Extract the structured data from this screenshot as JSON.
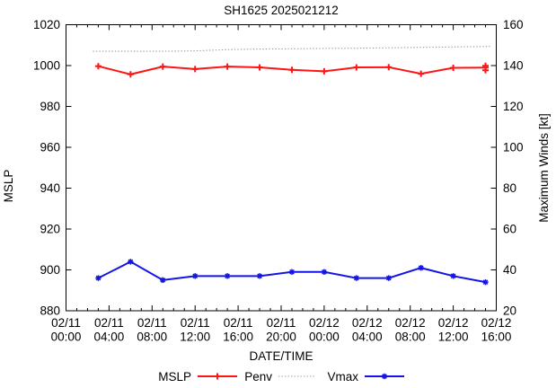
{
  "chart_data": {
    "type": "line",
    "title": "SH1625 2025021212",
    "xlabel": "DATE/TIME",
    "ylabel_left": "MSLP",
    "ylabel_right": "Maximum Winds [kt]",
    "axes": {
      "x_hours_range": [
        0,
        40
      ],
      "x_minor_step_hours": 1,
      "x_major_step_hours": 4,
      "y_left": {
        "min": 880,
        "max": 1020,
        "step": 20,
        "ticks": [
          880,
          900,
          920,
          940,
          960,
          980,
          1000,
          1020
        ]
      },
      "y_right": {
        "min": 20,
        "max": 160,
        "step": 20,
        "ticks": [
          20,
          40,
          60,
          80,
          100,
          120,
          140,
          160
        ]
      },
      "grid": "off"
    },
    "x_tick_labels": [
      [
        "02/11",
        "00:00"
      ],
      [
        "02/11",
        "04:00"
      ],
      [
        "02/11",
        "08:00"
      ],
      [
        "02/11",
        "12:00"
      ],
      [
        "02/11",
        "16:00"
      ],
      [
        "02/11",
        "20:00"
      ],
      [
        "02/12",
        "00:00"
      ],
      [
        "02/12",
        "04:00"
      ],
      [
        "02/12",
        "08:00"
      ],
      [
        "02/12",
        "12:00"
      ],
      [
        "02/12",
        "16:00"
      ]
    ],
    "series": [
      {
        "name": "Penv",
        "axis": "left",
        "color": "#969696",
        "style": "dotted",
        "marker": "none",
        "x_hours": [
          2.5,
          6,
          9,
          12,
          15,
          18,
          21,
          24,
          27,
          30,
          33,
          36,
          39.5
        ],
        "values": [
          1007.0,
          1007.0,
          1007.0,
          1007.2,
          1007.8,
          1008.1,
          1008.2,
          1008.4,
          1008.5,
          1008.7,
          1008.9,
          1009.1,
          1009.4
        ]
      },
      {
        "name": "MSLP",
        "axis": "left",
        "color": "#ff1414",
        "style": "solid",
        "marker": "plus",
        "x_hours": [
          3,
          6,
          9,
          12,
          15,
          18,
          21,
          24,
          27,
          30,
          33,
          36,
          39
        ],
        "values": [
          999.7,
          995.7,
          999.5,
          998.3,
          999.5,
          999.1,
          997.9,
          997.2,
          999.1,
          999.2,
          996.0,
          998.9,
          999.0
        ],
        "end_error_bar": {
          "hour": 39,
          "low": 997.7,
          "high": 999.9
        }
      },
      {
        "name": "Vmax",
        "axis": "right",
        "color": "#1414e6",
        "style": "solid",
        "marker": "asterisk",
        "x_hours": [
          3,
          6,
          9,
          12,
          15,
          18,
          21,
          24,
          27,
          30,
          33,
          36,
          39
        ],
        "values": [
          36,
          44,
          35,
          37,
          37,
          37,
          39,
          39,
          36,
          36,
          41,
          37,
          34
        ]
      }
    ],
    "legend": {
      "position": "bottom-center",
      "items": [
        {
          "label": "MSLP",
          "color": "#ff1414",
          "style": "solid",
          "marker": "plus"
        },
        {
          "label": "Penv",
          "color": "#969696",
          "style": "dotted",
          "marker": "none"
        },
        {
          "label": "Vmax",
          "color": "#1414e6",
          "style": "solid",
          "marker": "asterisk"
        }
      ]
    }
  }
}
